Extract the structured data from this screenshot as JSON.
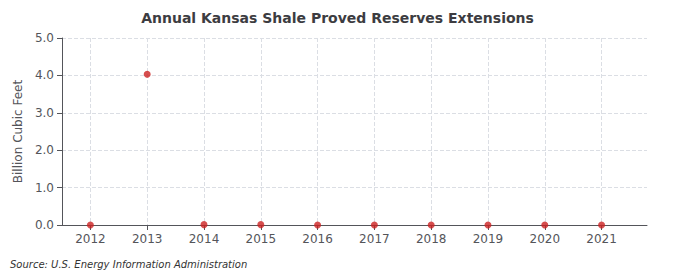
{
  "chart_data": {
    "type": "scatter",
    "title": "Annual Kansas Shale Proved Reserves Extensions",
    "ylabel": "Billion Cubic Feet",
    "annotation": "Source: U.S. Energy Information Administration",
    "x": [
      2012,
      2013,
      2014,
      2015,
      2016,
      2017,
      2018,
      2019,
      2020,
      2021
    ],
    "values": [
      0.0,
      4.03,
      0.01,
      0.01,
      0.0,
      0.0,
      0.0,
      0.0,
      0.0,
      0.0
    ],
    "color": "#cc2222",
    "marker": "circle",
    "xlim": [
      2011.5,
      2021.8
    ],
    "xticks": [
      2012,
      2013,
      2014,
      2015,
      2016,
      2017,
      2018,
      2019,
      2020,
      2021
    ],
    "ylim": [
      0.0,
      5.0
    ],
    "yticks": [
      {
        "value": 0.0,
        "label": "0.0"
      },
      {
        "value": 1.0,
        "label": "1.0"
      },
      {
        "value": 2.0,
        "label": "2.0"
      },
      {
        "value": 3.0,
        "label": "3.0"
      },
      {
        "value": 4.0,
        "label": "4.0"
      },
      {
        "value": 5.0,
        "label": "5.0"
      }
    ],
    "grid": true
  }
}
